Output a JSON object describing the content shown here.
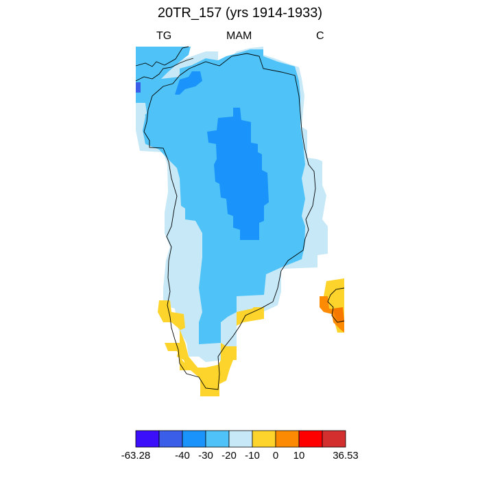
{
  "title": "20TR_157 (yrs 1914-1933)",
  "subtitle_left": "TG",
  "subtitle_center": "MAM",
  "subtitle_right": "C",
  "colorbar": {
    "colors": [
      "#3b0ffa",
      "#3a5ee8",
      "#1a93fa",
      "#4fc3f7",
      "#c6e8f7",
      "#fdd42b",
      "#fc8a02",
      "#fe0000",
      "#d32f2f"
    ],
    "labels": [
      "-63.28",
      "-40",
      "-30",
      "-20",
      "-10",
      "0",
      "10",
      "36.53"
    ],
    "label_boundaries": [
      0,
      2,
      3,
      4,
      5,
      6,
      7,
      9
    ]
  },
  "map_colors": {
    "land_light": "#c6e8f7",
    "mid_blue": "#4fc3f7",
    "deep_blue": "#1a93fa",
    "blue_dark": "#3a5ee8",
    "yellow": "#fdd42b",
    "orange": "#fc8a02",
    "dark_orange": "#f77800",
    "coast": "#000000"
  }
}
